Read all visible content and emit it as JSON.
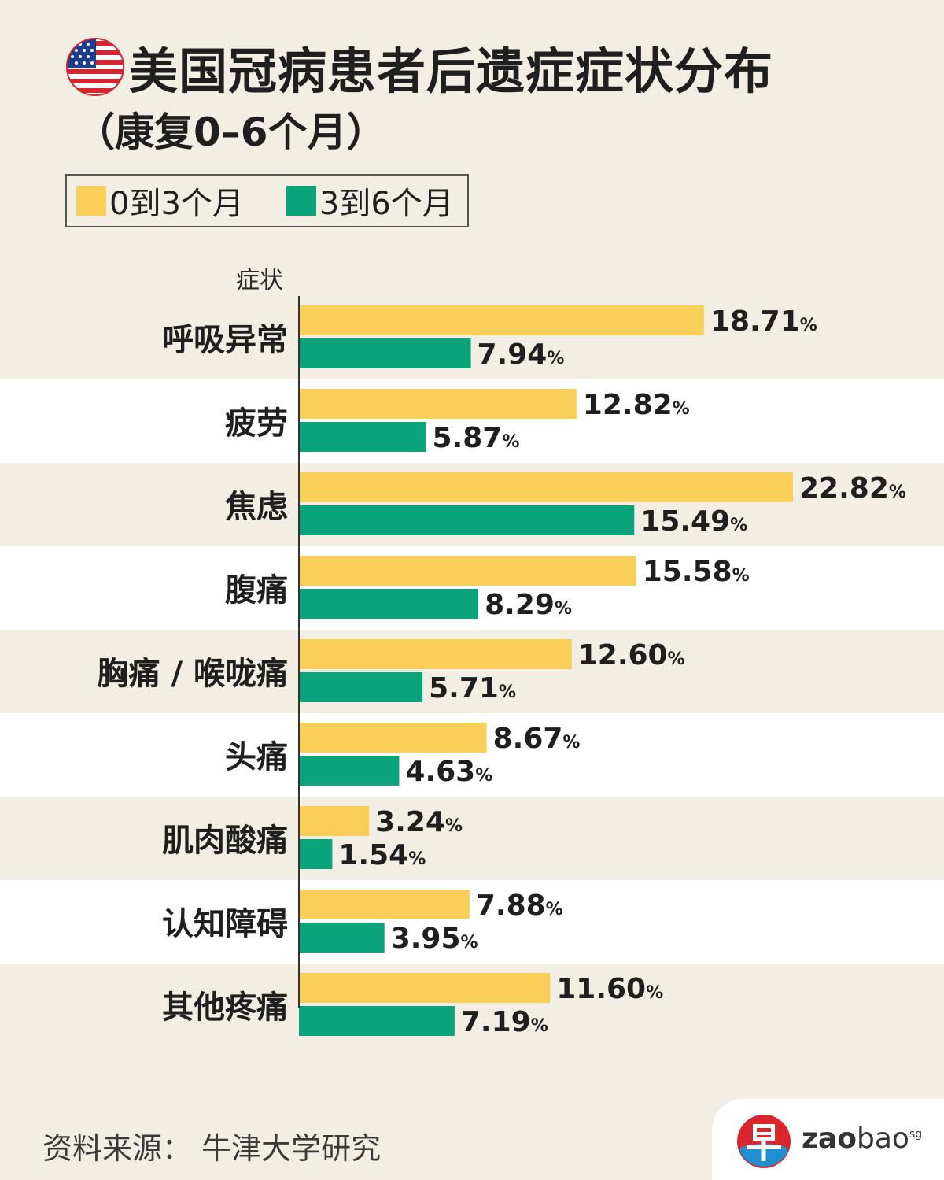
{
  "header": {
    "title": "美国冠病患者后遗症症状分布",
    "subtitle": "（康复0–6个月）",
    "flag_icon": "us-flag-icon"
  },
  "colors": {
    "period_0_3": "#f9cf5a",
    "period_3_6": "#0aa37a",
    "band_light": "#ffffff",
    "band_dark": "#f2eee3"
  },
  "chart_data": {
    "type": "bar",
    "orientation": "horizontal",
    "ylabel": "症状",
    "categories": [
      "呼吸异常",
      "疲劳",
      "焦虑",
      "腹痛",
      "胸痛 / 喉咙痛",
      "头痛",
      "肌肉酸痛",
      "认知障碍",
      "其他疼痛"
    ],
    "series": [
      {
        "name": "0到3个月",
        "values": [
          18.71,
          12.82,
          22.82,
          15.58,
          12.6,
          8.67,
          3.24,
          7.88,
          11.6
        ]
      },
      {
        "name": "3到6个月",
        "values": [
          7.94,
          5.87,
          15.49,
          8.29,
          5.71,
          4.63,
          1.54,
          3.95,
          7.19
        ]
      }
    ],
    "value_labels": [
      [
        "18.71",
        "12.82",
        "22.82",
        "15.58",
        "12.60",
        "8.67",
        "3.24",
        "7.88",
        "11.60"
      ],
      [
        "7.94",
        "5.87",
        "15.49",
        "8.29",
        "5.71",
        "4.63",
        "1.54",
        "3.95",
        "7.19"
      ]
    ],
    "unit": "%",
    "xlim": [
      0,
      22.82
    ],
    "legend_position": "top-left",
    "grid": false
  },
  "footer": {
    "source": "资料来源： 牛津大学研究",
    "logo_icon": "zaobao-logo-icon",
    "logo_bold": "zao",
    "logo_light": "bao",
    "logo_sup": "sg"
  }
}
